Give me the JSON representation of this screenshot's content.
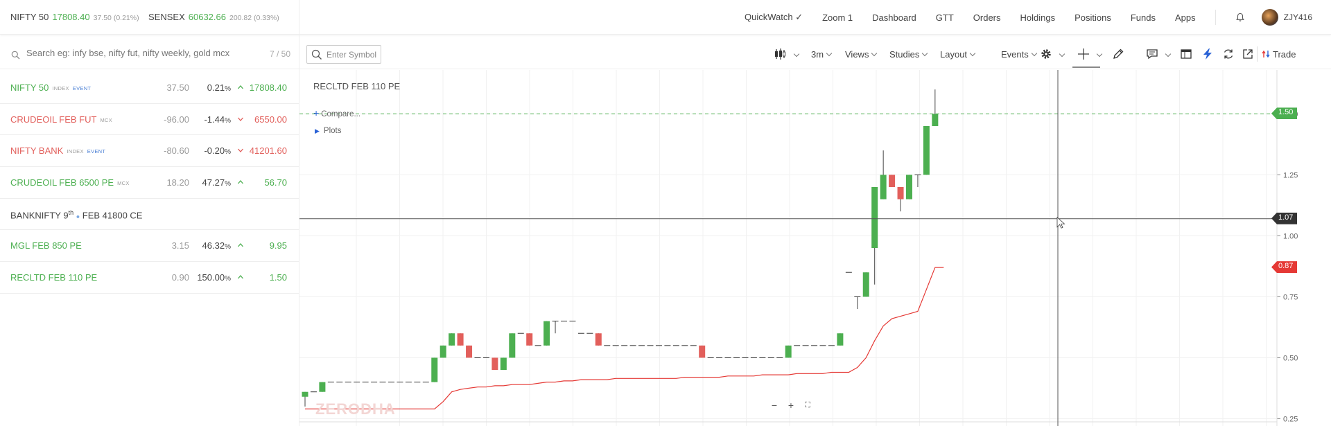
{
  "header": {
    "indices": [
      {
        "name": "NIFTY 50",
        "value": "17808.40",
        "change": "37.50 (0.21%)"
      },
      {
        "name": "SENSEX",
        "value": "60632.66",
        "change": "200.82 (0.33%)"
      }
    ],
    "nav": [
      "QuickWatch ✓",
      "Zoom 1",
      "Dashboard",
      "GTT",
      "Orders",
      "Holdings",
      "Positions",
      "Funds",
      "Apps"
    ],
    "user_id": "ZJY416"
  },
  "search": {
    "placeholder": "Search eg: infy bse, nifty fut, nifty weekly, gold mcx",
    "count": "7 / 50"
  },
  "watchlist": [
    {
      "symbol": "NIFTY 50",
      "tags": [
        "INDEX",
        "EVENT"
      ],
      "change": "37.50",
      "pct": "0.21",
      "ltp": "17808.40",
      "dir": "up"
    },
    {
      "symbol": "CRUDEOIL FEB FUT",
      "tags": [
        "MCX"
      ],
      "change": "-96.00",
      "pct": "-1.44",
      "ltp": "6550.00",
      "dir": "down"
    },
    {
      "symbol": "NIFTY BANK",
      "tags": [
        "INDEX",
        "EVENT"
      ],
      "change": "-80.60",
      "pct": "-0.20",
      "ltp": "41201.60",
      "dir": "down"
    },
    {
      "symbol": "CRUDEOIL FEB 6500 PE",
      "tags": [
        "MCX"
      ],
      "change": "18.20",
      "pct": "47.27",
      "ltp": "56.70",
      "dir": "up"
    },
    {
      "symbol_pre": "BANKNIFTY 9",
      "symbol_sup": "th",
      "symbol_post": " FEB 41800 CE",
      "tags": [],
      "change": "",
      "pct": "",
      "ltp": "",
      "dir": "none"
    },
    {
      "symbol": "MGL FEB 850 PE",
      "tags": [],
      "change": "3.15",
      "pct": "46.32",
      "ltp": "9.95",
      "dir": "up"
    },
    {
      "symbol": "RECLTD FEB 110 PE",
      "tags": [],
      "change": "0.90",
      "pct": "150.00",
      "ltp": "1.50",
      "dir": "up"
    }
  ],
  "chart_toolbar": {
    "symbol_placeholder": "Enter Symbol",
    "interval": "3m",
    "menus": [
      "Views",
      "Studies",
      "Layout",
      "Events"
    ],
    "trade_label": "Trade"
  },
  "chart": {
    "title": "RECLTD FEB 110 PE",
    "compare_label": "Compare...",
    "plots_label": "Plots",
    "watermark": "ZERODHA",
    "last_price_badge": "1.50",
    "crosshair_badge": "1.07",
    "indicator_badge": "0.87",
    "colors": {
      "up": "#4caf50",
      "down": "#e25f5b",
      "indicator": "#e53935",
      "badge_last": "#4caf50",
      "badge_cross": "#333333",
      "badge_ind": "#e53935"
    }
  },
  "chart_data": {
    "type": "candlestick",
    "ylim": [
      0.22,
      1.68
    ],
    "y_ticks": [
      "1.50",
      "1.25",
      "1.00",
      "0.75",
      "0.50",
      "0.25"
    ],
    "candles": [
      {
        "o": 0.34,
        "h": 0.36,
        "l": 0.3,
        "c": 0.36
      },
      {
        "o": 0.36,
        "h": 0.36,
        "l": 0.36,
        "c": 0.36
      },
      {
        "o": 0.36,
        "h": 0.4,
        "l": 0.36,
        "c": 0.4
      },
      {
        "o": 0.4,
        "h": 0.4,
        "l": 0.4,
        "c": 0.4
      },
      {
        "o": 0.4,
        "h": 0.4,
        "l": 0.4,
        "c": 0.4
      },
      {
        "o": 0.4,
        "h": 0.4,
        "l": 0.4,
        "c": 0.4
      },
      {
        "o": 0.4,
        "h": 0.4,
        "l": 0.4,
        "c": 0.4
      },
      {
        "o": 0.4,
        "h": 0.4,
        "l": 0.4,
        "c": 0.4
      },
      {
        "o": 0.4,
        "h": 0.4,
        "l": 0.4,
        "c": 0.4
      },
      {
        "o": 0.4,
        "h": 0.4,
        "l": 0.4,
        "c": 0.4
      },
      {
        "o": 0.4,
        "h": 0.4,
        "l": 0.4,
        "c": 0.4
      },
      {
        "o": 0.4,
        "h": 0.4,
        "l": 0.4,
        "c": 0.4
      },
      {
        "o": 0.4,
        "h": 0.4,
        "l": 0.4,
        "c": 0.4
      },
      {
        "o": 0.4,
        "h": 0.4,
        "l": 0.4,
        "c": 0.4
      },
      {
        "o": 0.4,
        "h": 0.4,
        "l": 0.4,
        "c": 0.4
      },
      {
        "o": 0.4,
        "h": 0.5,
        "l": 0.4,
        "c": 0.5
      },
      {
        "o": 0.5,
        "h": 0.55,
        "l": 0.5,
        "c": 0.55
      },
      {
        "o": 0.55,
        "h": 0.6,
        "l": 0.55,
        "c": 0.6
      },
      {
        "o": 0.6,
        "h": 0.6,
        "l": 0.55,
        "c": 0.55
      },
      {
        "o": 0.55,
        "h": 0.55,
        "l": 0.5,
        "c": 0.5
      },
      {
        "o": 0.5,
        "h": 0.5,
        "l": 0.5,
        "c": 0.5
      },
      {
        "o": 0.5,
        "h": 0.5,
        "l": 0.5,
        "c": 0.5
      },
      {
        "o": 0.5,
        "h": 0.5,
        "l": 0.45,
        "c": 0.45
      },
      {
        "o": 0.45,
        "h": 0.5,
        "l": 0.45,
        "c": 0.5
      },
      {
        "o": 0.5,
        "h": 0.6,
        "l": 0.5,
        "c": 0.6
      },
      {
        "o": 0.6,
        "h": 0.6,
        "l": 0.6,
        "c": 0.6
      },
      {
        "o": 0.6,
        "h": 0.6,
        "l": 0.55,
        "c": 0.55
      },
      {
        "o": 0.55,
        "h": 0.55,
        "l": 0.55,
        "c": 0.55
      },
      {
        "o": 0.55,
        "h": 0.65,
        "l": 0.55,
        "c": 0.65
      },
      {
        "o": 0.65,
        "h": 0.65,
        "l": 0.6,
        "c": 0.65
      },
      {
        "o": 0.65,
        "h": 0.65,
        "l": 0.65,
        "c": 0.65
      },
      {
        "o": 0.65,
        "h": 0.65,
        "l": 0.65,
        "c": 0.65
      },
      {
        "o": 0.6,
        "h": 0.6,
        "l": 0.6,
        "c": 0.6
      },
      {
        "o": 0.6,
        "h": 0.6,
        "l": 0.6,
        "c": 0.6
      },
      {
        "o": 0.6,
        "h": 0.6,
        "l": 0.55,
        "c": 0.55
      },
      {
        "o": 0.55,
        "h": 0.55,
        "l": 0.55,
        "c": 0.55
      },
      {
        "o": 0.55,
        "h": 0.55,
        "l": 0.55,
        "c": 0.55
      },
      {
        "o": 0.55,
        "h": 0.55,
        "l": 0.55,
        "c": 0.55
      },
      {
        "o": 0.55,
        "h": 0.55,
        "l": 0.55,
        "c": 0.55
      },
      {
        "o": 0.55,
        "h": 0.55,
        "l": 0.55,
        "c": 0.55
      },
      {
        "o": 0.55,
        "h": 0.55,
        "l": 0.55,
        "c": 0.55
      },
      {
        "o": 0.55,
        "h": 0.55,
        "l": 0.55,
        "c": 0.55
      },
      {
        "o": 0.55,
        "h": 0.55,
        "l": 0.55,
        "c": 0.55
      },
      {
        "o": 0.55,
        "h": 0.55,
        "l": 0.55,
        "c": 0.55
      },
      {
        "o": 0.55,
        "h": 0.55,
        "l": 0.55,
        "c": 0.55
      },
      {
        "o": 0.55,
        "h": 0.55,
        "l": 0.55,
        "c": 0.55
      },
      {
        "o": 0.55,
        "h": 0.55,
        "l": 0.5,
        "c": 0.5
      },
      {
        "o": 0.5,
        "h": 0.5,
        "l": 0.5,
        "c": 0.5
      },
      {
        "o": 0.5,
        "h": 0.5,
        "l": 0.5,
        "c": 0.5
      },
      {
        "o": 0.5,
        "h": 0.5,
        "l": 0.5,
        "c": 0.5
      },
      {
        "o": 0.5,
        "h": 0.5,
        "l": 0.5,
        "c": 0.5
      },
      {
        "o": 0.5,
        "h": 0.5,
        "l": 0.5,
        "c": 0.5
      },
      {
        "o": 0.5,
        "h": 0.5,
        "l": 0.5,
        "c": 0.5
      },
      {
        "o": 0.5,
        "h": 0.5,
        "l": 0.5,
        "c": 0.5
      },
      {
        "o": 0.5,
        "h": 0.5,
        "l": 0.5,
        "c": 0.5
      },
      {
        "o": 0.5,
        "h": 0.5,
        "l": 0.5,
        "c": 0.5
      },
      {
        "o": 0.5,
        "h": 0.55,
        "l": 0.5,
        "c": 0.55
      },
      {
        "o": 0.55,
        "h": 0.55,
        "l": 0.55,
        "c": 0.55
      },
      {
        "o": 0.55,
        "h": 0.55,
        "l": 0.55,
        "c": 0.55
      },
      {
        "o": 0.55,
        "h": 0.55,
        "l": 0.55,
        "c": 0.55
      },
      {
        "o": 0.55,
        "h": 0.55,
        "l": 0.55,
        "c": 0.55
      },
      {
        "o": 0.55,
        "h": 0.55,
        "l": 0.55,
        "c": 0.55
      },
      {
        "o": 0.55,
        "h": 0.6,
        "l": 0.55,
        "c": 0.6
      },
      {
        "o": 0.85,
        "h": 0.85,
        "l": 0.85,
        "c": 0.85
      },
      {
        "o": 0.75,
        "h": 0.75,
        "l": 0.7,
        "c": 0.75
      },
      {
        "o": 0.75,
        "h": 0.85,
        "l": 0.75,
        "c": 0.85
      },
      {
        "o": 0.95,
        "h": 1.2,
        "l": 0.8,
        "c": 1.2
      },
      {
        "o": 1.15,
        "h": 1.35,
        "l": 1.15,
        "c": 1.25
      },
      {
        "o": 1.25,
        "h": 1.25,
        "l": 1.2,
        "c": 1.2
      },
      {
        "o": 1.2,
        "h": 1.2,
        "l": 1.1,
        "c": 1.15
      },
      {
        "o": 1.15,
        "h": 1.25,
        "l": 1.15,
        "c": 1.25
      },
      {
        "o": 1.25,
        "h": 1.25,
        "l": 1.2,
        "c": 1.25
      },
      {
        "o": 1.25,
        "h": 1.45,
        "l": 1.25,
        "c": 1.45
      },
      {
        "o": 1.45,
        "h": 1.6,
        "l": 1.45,
        "c": 1.5
      }
    ],
    "indicator_line": [
      0.29,
      0.29,
      0.29,
      0.29,
      0.29,
      0.29,
      0.29,
      0.29,
      0.29,
      0.29,
      0.29,
      0.29,
      0.29,
      0.29,
      0.29,
      0.29,
      0.32,
      0.36,
      0.37,
      0.375,
      0.38,
      0.38,
      0.385,
      0.385,
      0.39,
      0.39,
      0.39,
      0.395,
      0.4,
      0.4,
      0.405,
      0.405,
      0.41,
      0.41,
      0.41,
      0.41,
      0.415,
      0.415,
      0.415,
      0.415,
      0.415,
      0.415,
      0.415,
      0.415,
      0.42,
      0.42,
      0.42,
      0.42,
      0.42,
      0.425,
      0.425,
      0.425,
      0.425,
      0.43,
      0.43,
      0.43,
      0.43,
      0.435,
      0.435,
      0.435,
      0.435,
      0.44,
      0.44,
      0.44,
      0.46,
      0.5,
      0.57,
      0.63,
      0.66,
      0.67,
      0.68,
      0.69,
      0.78,
      0.87,
      0.87
    ],
    "crosshair_price": 1.07
  }
}
